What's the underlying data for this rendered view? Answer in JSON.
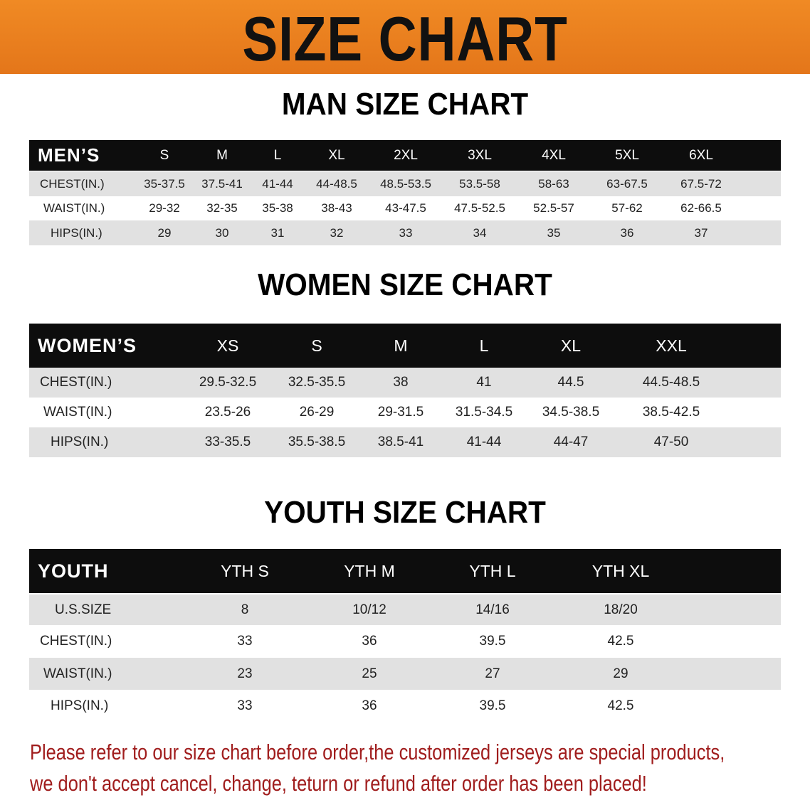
{
  "banner": {
    "title": "SIZE CHART",
    "color": "#e87a1e"
  },
  "men": {
    "title": "MAN SIZE CHART",
    "header_label": "MEN’S",
    "sizes": [
      "S",
      "M",
      "L",
      "XL",
      "2XL",
      "3XL",
      "4XL",
      "5XL",
      "6XL"
    ],
    "rows": [
      {
        "label": "CHEST(IN.)",
        "values": [
          "35-37.5",
          "37.5-41",
          "41-44",
          "44-48.5",
          "48.5-53.5",
          "53.5-58",
          "58-63",
          "63-67.5",
          "67.5-72"
        ]
      },
      {
        "label": "WAIST(IN.)",
        "values": [
          "29-32",
          "32-35",
          "35-38",
          "38-43",
          "43-47.5",
          "47.5-52.5",
          "52.5-57",
          "57-62",
          "62-66.5"
        ]
      },
      {
        "label": "HIPS(IN.)",
        "values": [
          "29",
          "30",
          "31",
          "32",
          "33",
          "34",
          "35",
          "36",
          "37"
        ]
      }
    ]
  },
  "women": {
    "title": "WOMEN SIZE CHART",
    "header_label": "WOMEN’S",
    "sizes": [
      "XS",
      "S",
      "M",
      "L",
      "XL",
      "XXL"
    ],
    "rows": [
      {
        "label": "CHEST(IN.)",
        "values": [
          "29.5-32.5",
          "32.5-35.5",
          "38",
          "41",
          "44.5",
          "44.5-48.5"
        ]
      },
      {
        "label": "WAIST(IN.)",
        "values": [
          "23.5-26",
          "26-29",
          "29-31.5",
          "31.5-34.5",
          "34.5-38.5",
          "38.5-42.5"
        ]
      },
      {
        "label": "HIPS(IN.)",
        "values": [
          "33-35.5",
          "35.5-38.5",
          "38.5-41",
          "41-44",
          "44-47",
          "47-50"
        ]
      }
    ]
  },
  "youth": {
    "title": "YOUTH SIZE CHART",
    "header_label": "YOUTH",
    "sizes": [
      "YTH S",
      "YTH M",
      "YTH L",
      "YTH XL"
    ],
    "rows": [
      {
        "label": "U.S.SIZE",
        "values": [
          "8",
          "10/12",
          "14/16",
          "18/20"
        ]
      },
      {
        "label": "CHEST(IN.)",
        "values": [
          "33",
          "36",
          "39.5",
          "42.5"
        ]
      },
      {
        "label": "WAIST(IN.)",
        "values": [
          "23",
          "25",
          "27",
          "29"
        ]
      },
      {
        "label": "HIPS(IN.)",
        "values": [
          "33",
          "36",
          "39.5",
          "42.5"
        ]
      }
    ]
  },
  "notice": {
    "line1": "Please refer to our size chart before order,the customized jerseys are special products,",
    "line2": "we don't accept cancel, change, teturn or refund after order has been placed!",
    "color": "#a01d1d"
  }
}
